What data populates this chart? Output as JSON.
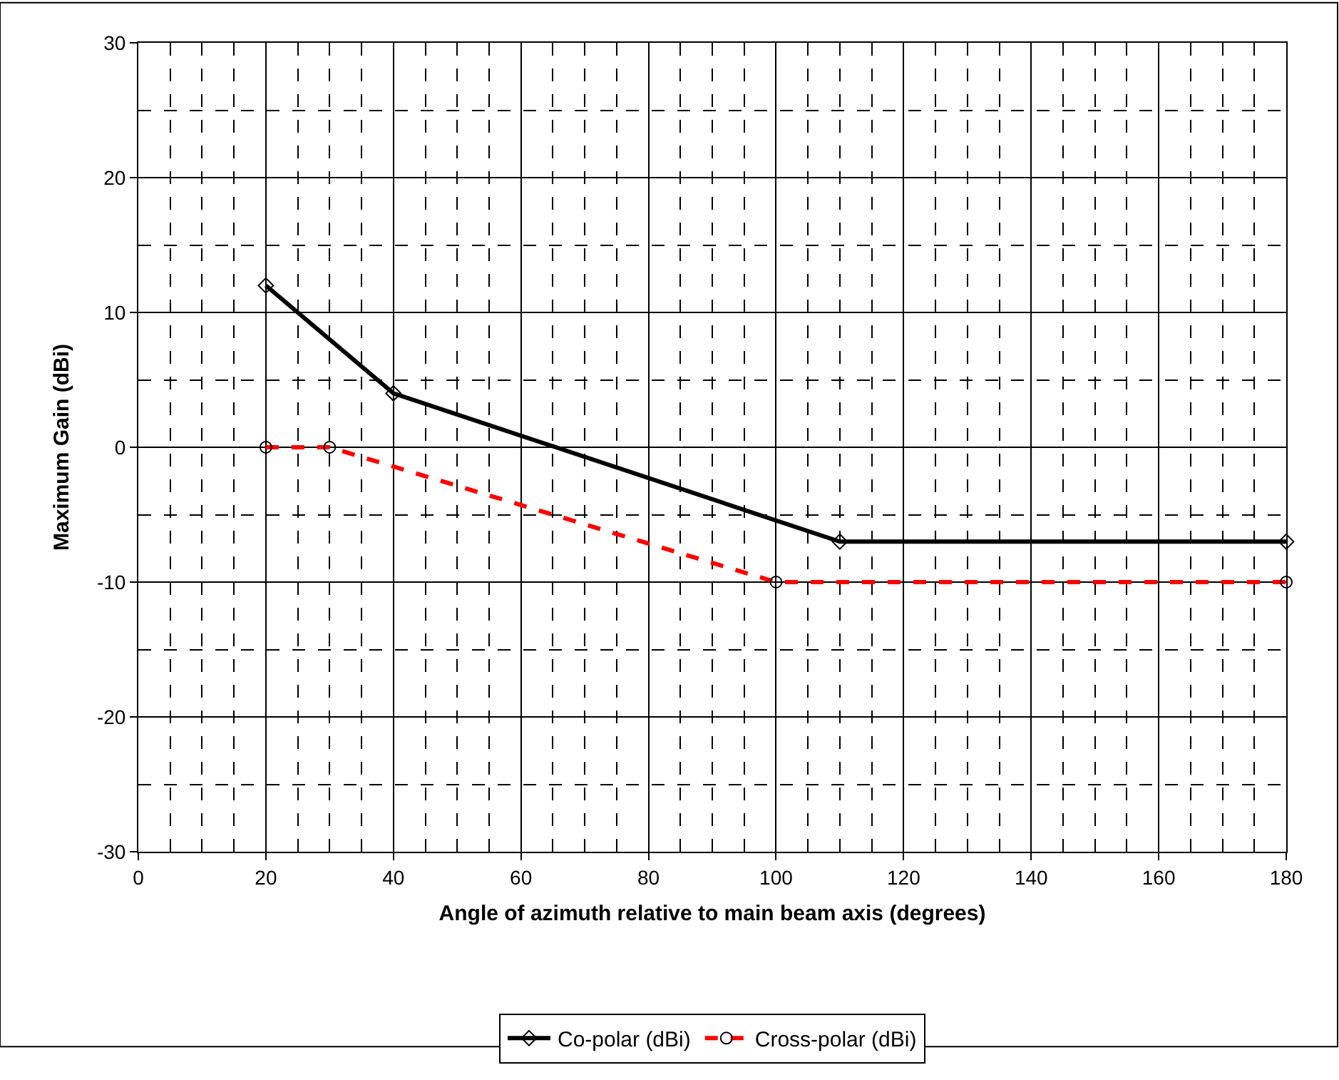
{
  "chart_data": {
    "type": "line",
    "xlabel": "Angle of azimuth relative to main beam axis (degrees)",
    "ylabel": "Maximum Gain (dBi)",
    "xlim": [
      0,
      180
    ],
    "xticks": [
      0,
      20,
      40,
      60,
      80,
      100,
      120,
      140,
      160,
      180
    ],
    "ylim": [
      -30,
      30
    ],
    "yticks": [
      -30,
      -20,
      -10,
      0,
      10,
      20,
      30
    ],
    "grid": true,
    "legend": "bottom",
    "series": [
      {
        "name": "Co-polar (dBi)",
        "color": "#000000",
        "x": [
          20,
          40,
          110,
          180
        ],
        "values": [
          12,
          4,
          -7,
          -7
        ],
        "marker": "diamond",
        "line_style": "solid"
      },
      {
        "name": "Cross-polar (dBi)",
        "color": "#ff0000",
        "x": [
          20,
          30,
          100,
          180
        ],
        "values": [
          0,
          0,
          -10,
          -10
        ],
        "marker": "circle",
        "line_style": "dashed"
      }
    ]
  }
}
